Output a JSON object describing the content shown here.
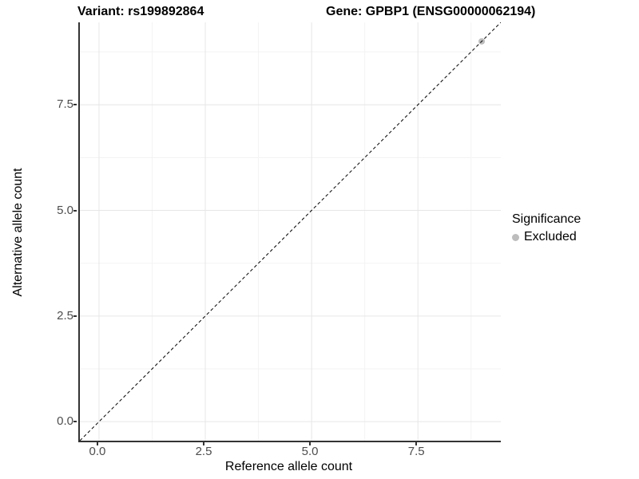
{
  "header": {
    "variant_title": "Variant: rs199892864",
    "gene_title": "Gene: GPBP1 (ENSG00000062194)"
  },
  "legend": {
    "title": "Significance",
    "items": [
      {
        "label": "Excluded",
        "color": "#bdbdbd"
      }
    ]
  },
  "chart_data": {
    "type": "scatter",
    "title": "Variant: rs199892864   Gene: GPBP1 (ENSG00000062194)",
    "xlabel": "Reference allele count",
    "ylabel": "Alternative allele count",
    "xlim": [
      -0.45,
      9.45
    ],
    "ylim": [
      -0.45,
      9.45
    ],
    "x_ticks": [
      {
        "value": 0.0,
        "label": "0.0"
      },
      {
        "value": 2.5,
        "label": "2.5"
      },
      {
        "value": 5.0,
        "label": "5.0"
      },
      {
        "value": 7.5,
        "label": "7.5"
      }
    ],
    "y_ticks": [
      {
        "value": 0.0,
        "label": "0.0"
      },
      {
        "value": 2.5,
        "label": "2.5"
      },
      {
        "value": 5.0,
        "label": "5.0"
      },
      {
        "value": 7.5,
        "label": "7.5"
      }
    ],
    "minor_ticks": [
      1.25,
      3.75,
      6.25,
      8.75
    ],
    "grid": {
      "major_color": "#e6e6e6",
      "minor_color": "#f3f3f3"
    },
    "axis_line_color": "#333333",
    "reference_line": {
      "type": "abline",
      "intercept": 0,
      "slope": 1,
      "style": "dashed",
      "color": "#000000",
      "dash": "4 3"
    },
    "series": [
      {
        "name": "Excluded",
        "color": "#bdbdbd",
        "point_radius": 4,
        "points": [
          [
            9,
            9
          ]
        ]
      }
    ],
    "legend_position": "right",
    "legend_title": "Significance"
  }
}
